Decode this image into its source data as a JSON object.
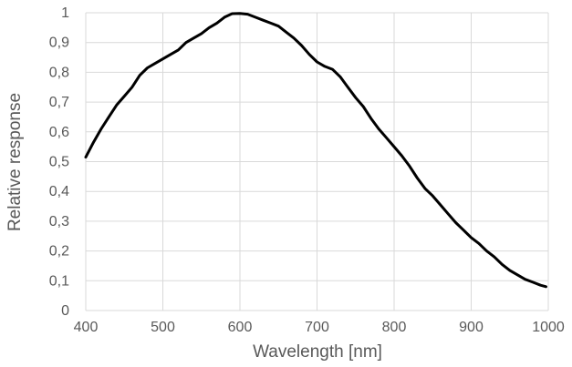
{
  "chart_data": {
    "type": "line",
    "title": "",
    "xlabel": "Wavelength [nm]",
    "ylabel": "Relative response",
    "xlim": [
      400,
      1000
    ],
    "ylim": [
      0,
      1
    ],
    "x_ticks": [
      400,
      500,
      600,
      700,
      800,
      900,
      1000
    ],
    "x_tick_labels": [
      "400",
      "500",
      "600",
      "700",
      "800",
      "900",
      "1000"
    ],
    "y_ticks": [
      0,
      0.1,
      0.2,
      0.3,
      0.4,
      0.5,
      0.6,
      0.7,
      0.8,
      0.9,
      1
    ],
    "y_tick_labels": [
      "0",
      "0,1",
      "0,2",
      "0,3",
      "0,4",
      "0,5",
      "0,6",
      "0,7",
      "0,8",
      "0,9",
      "1"
    ],
    "grid": true,
    "legend": "none",
    "line_color": "#000000",
    "grid_color": "#d9d9d9",
    "series": [
      {
        "x": [
          400,
          410,
          420,
          430,
          440,
          450,
          460,
          470,
          480,
          490,
          500,
          510,
          520,
          530,
          540,
          550,
          560,
          570,
          580,
          590,
          600,
          610,
          620,
          630,
          640,
          650,
          660,
          670,
          680,
          690,
          700,
          710,
          720,
          730,
          740,
          750,
          760,
          770,
          780,
          790,
          800,
          810,
          820,
          830,
          840,
          850,
          860,
          870,
          880,
          890,
          900,
          910,
          920,
          930,
          940,
          950,
          960,
          970,
          980,
          990,
          997
        ],
        "y": [
          0.515,
          0.565,
          0.61,
          0.65,
          0.69,
          0.72,
          0.75,
          0.79,
          0.815,
          0.83,
          0.845,
          0.86,
          0.875,
          0.9,
          0.915,
          0.93,
          0.95,
          0.965,
          0.985,
          0.997,
          0.998,
          0.995,
          0.985,
          0.975,
          0.965,
          0.955,
          0.935,
          0.915,
          0.89,
          0.86,
          0.835,
          0.82,
          0.81,
          0.785,
          0.75,
          0.715,
          0.685,
          0.645,
          0.61,
          0.58,
          0.55,
          0.52,
          0.485,
          0.445,
          0.41,
          0.385,
          0.355,
          0.325,
          0.295,
          0.27,
          0.245,
          0.225,
          0.2,
          0.18,
          0.155,
          0.135,
          0.12,
          0.105,
          0.095,
          0.085,
          0.08
        ]
      }
    ]
  }
}
